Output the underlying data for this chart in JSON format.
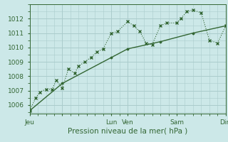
{
  "xlabel": "Pression niveau de la mer( hPa )",
  "bg_color": "#cce8e8",
  "grid_color": "#aacccc",
  "line_color": "#336633",
  "ylim": [
    1005.4,
    1013.0
  ],
  "xlim": [
    0,
    96
  ],
  "xtick_positions": [
    0,
    16,
    40,
    48,
    72,
    96
  ],
  "xtick_labels": [
    "Jeu",
    "",
    "Lun",
    "Ven",
    "Sam",
    "Dim"
  ],
  "ytick_positions": [
    1006,
    1007,
    1008,
    1009,
    1010,
    1011,
    1012
  ],
  "ytick_labels": [
    "1006",
    "1007",
    "1008",
    "1009",
    "1010",
    "1011",
    "1012"
  ],
  "line1_x": [
    0,
    3,
    5,
    8,
    11,
    13,
    16,
    19,
    22,
    24,
    27,
    30,
    33,
    36,
    40,
    43,
    48,
    51,
    54,
    57,
    60,
    64,
    67,
    72,
    74,
    77,
    80,
    84,
    88,
    92,
    96
  ],
  "line1_y": [
    1005.6,
    1006.5,
    1006.9,
    1007.1,
    1007.1,
    1007.7,
    1007.2,
    1008.5,
    1008.2,
    1008.7,
    1009.0,
    1009.3,
    1009.7,
    1009.9,
    1011.0,
    1011.1,
    1011.8,
    1011.5,
    1011.1,
    1010.3,
    1010.2,
    1011.5,
    1011.7,
    1011.7,
    1012.0,
    1012.5,
    1012.6,
    1012.4,
    1010.5,
    1010.3,
    1011.5
  ],
  "line2_x": [
    0,
    16,
    40,
    48,
    64,
    80,
    96
  ],
  "line2_y": [
    1005.6,
    1007.5,
    1009.3,
    1009.9,
    1010.4,
    1011.0,
    1011.5
  ]
}
